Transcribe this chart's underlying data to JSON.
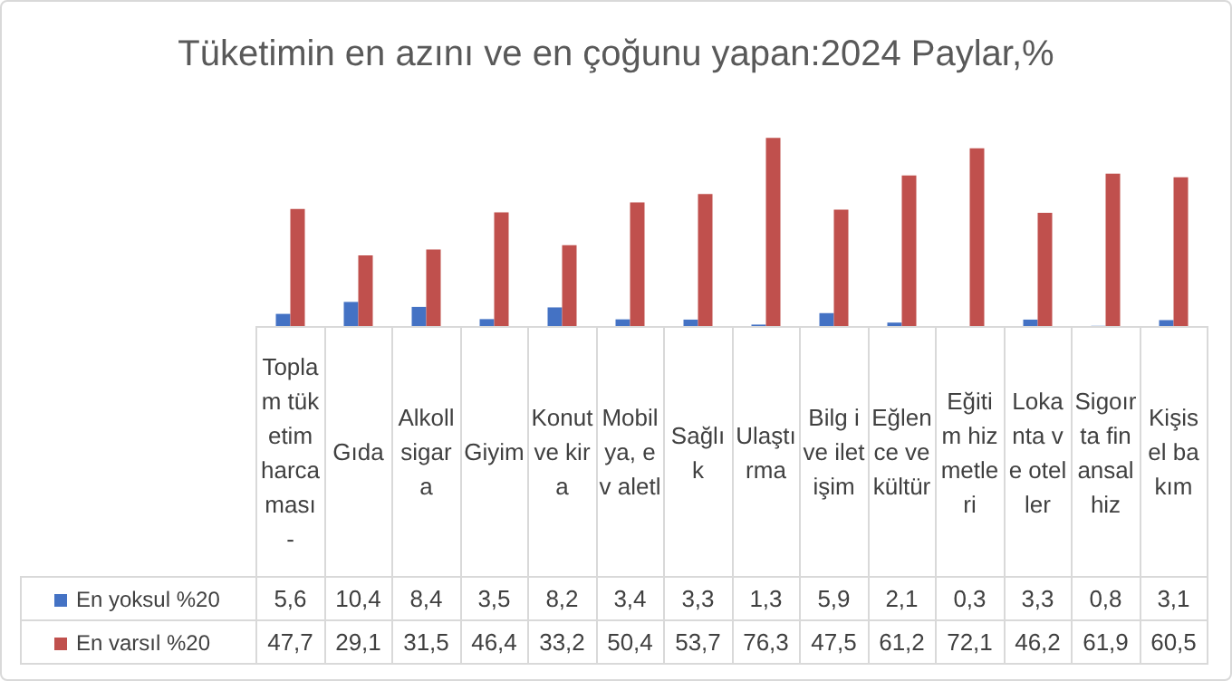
{
  "chart_data": {
    "type": "bar",
    "title": "Tüketimin en azını ve en çoğunu yapan:2024 Paylar,%",
    "categories": [
      "Toplam tüketim harcaması -",
      "Gıda",
      "Alkoll sigara",
      "Giyim",
      "Konut ve kira",
      "Mobilya, ev aletl",
      "Sağlık",
      "Ulaştırma",
      "Bilg i ve iletişim",
      "Eğlence ve kültür",
      "Eğitim hizmetleri",
      "Lokanta ve oteller",
      "Sigoırta finansal hiz",
      "Kişisel bakım"
    ],
    "series": [
      {
        "name": "En yoksul %20",
        "color": "#4472c4",
        "values": [
          5.6,
          10.4,
          8.4,
          3.5,
          8.2,
          3.4,
          3.3,
          1.3,
          5.9,
          2.1,
          0.3,
          3.3,
          0.8,
          3.1
        ],
        "value_labels": [
          "5,6",
          "10,4",
          "8,4",
          "3,5",
          "8,2",
          "3,4",
          "3,3",
          "1,3",
          "5,9",
          "2,1",
          "0,3",
          "3,3",
          "0,8",
          "3,1"
        ]
      },
      {
        "name": "En varsıl %20",
        "color": "#c0504d",
        "values": [
          47.7,
          29.1,
          31.5,
          46.4,
          33.2,
          50.4,
          53.7,
          76.3,
          47.5,
          61.2,
          72.1,
          46.2,
          61.9,
          60.5
        ],
        "value_labels": [
          "47,7",
          "29,1",
          "31,5",
          "46,4",
          "33,2",
          "50,4",
          "53,7",
          "76,3",
          "47,5",
          "61,2",
          "72,1",
          "46,2",
          "61,9",
          "60,5"
        ]
      }
    ],
    "legend": "bottom",
    "grid": false
  }
}
